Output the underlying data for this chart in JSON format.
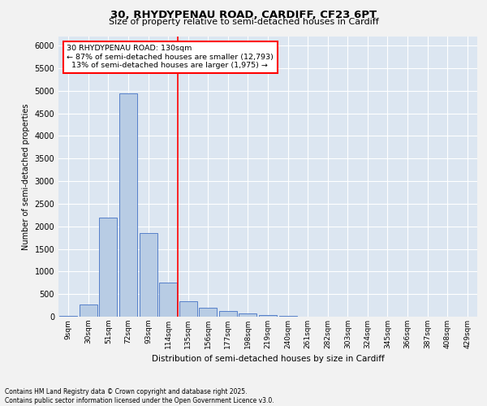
{
  "title_line1": "30, RHYDYPENAU ROAD, CARDIFF, CF23 6PT",
  "title_line2": "Size of property relative to semi-detached houses in Cardiff",
  "xlabel": "Distribution of semi-detached houses by size in Cardiff",
  "ylabel": "Number of semi-detached properties",
  "footnote": "Contains HM Land Registry data © Crown copyright and database right 2025.\nContains public sector information licensed under the Open Government Licence v3.0.",
  "categories": [
    "9sqm",
    "30sqm",
    "51sqm",
    "72sqm",
    "93sqm",
    "114sqm",
    "135sqm",
    "156sqm",
    "177sqm",
    "198sqm",
    "219sqm",
    "240sqm",
    "261sqm",
    "282sqm",
    "303sqm",
    "324sqm",
    "345sqm",
    "366sqm",
    "387sqm",
    "408sqm",
    "429sqm"
  ],
  "values": [
    20,
    270,
    2200,
    4950,
    1850,
    750,
    350,
    200,
    130,
    80,
    30,
    15,
    8,
    5,
    3,
    2,
    2,
    2,
    2,
    2,
    2
  ],
  "bar_color": "#b8cce4",
  "bar_edge_color": "#4472c4",
  "property_bin_index": 6,
  "property_line_label": "30 RHYDYPENAU ROAD: 130sqm",
  "smaller_pct": "87%",
  "smaller_count": "12,793",
  "larger_pct": "13%",
  "larger_count": "1,975",
  "ylim": [
    0,
    6200
  ],
  "yticks": [
    0,
    500,
    1000,
    1500,
    2000,
    2500,
    3000,
    3500,
    4000,
    4500,
    5000,
    5500,
    6000
  ],
  "bg_color": "#dce6f1",
  "grid_color": "#ffffff",
  "fig_bg_color": "#f2f2f2"
}
